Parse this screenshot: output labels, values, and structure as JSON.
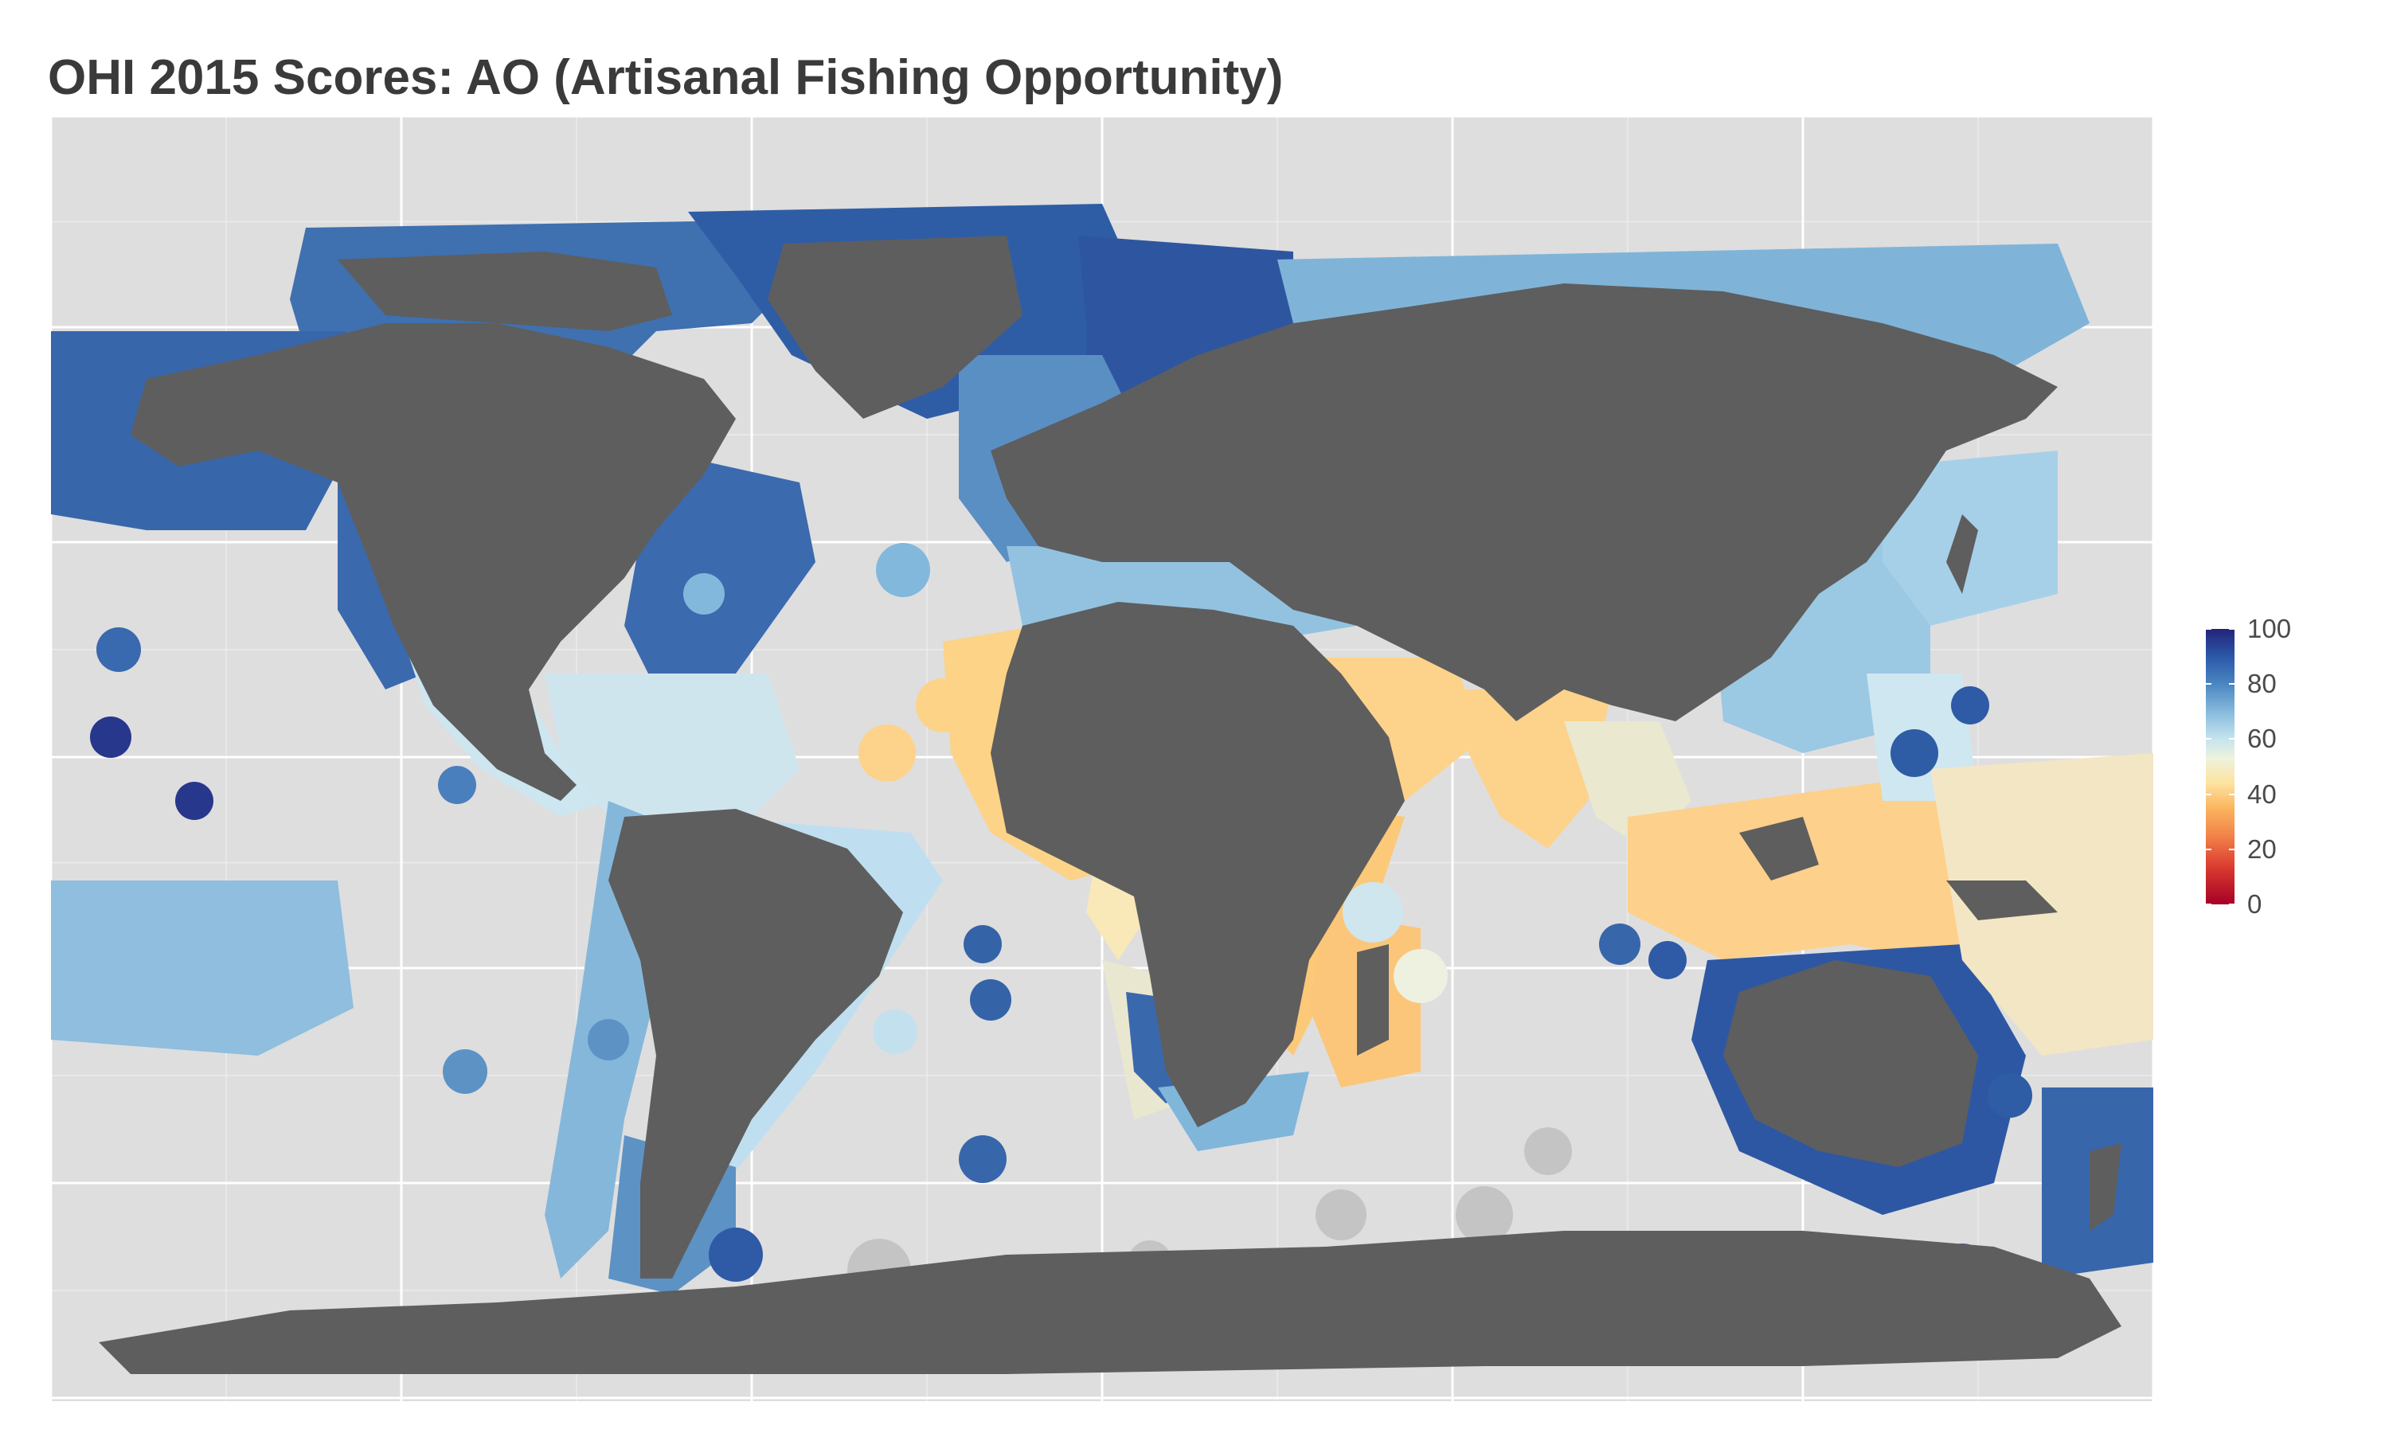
{
  "title": "OHI 2015 Scores: AO (Artisanal Fishing Opportunity)",
  "legend": {
    "ticks": [
      {
        "value": 100,
        "label": "100"
      },
      {
        "value": 80,
        "label": "80"
      },
      {
        "value": 60,
        "label": "60"
      },
      {
        "value": 40,
        "label": "40"
      },
      {
        "value": 20,
        "label": "20"
      },
      {
        "value": 0,
        "label": "0"
      }
    ],
    "range": [
      0,
      100
    ],
    "colors": [
      "#a50026",
      "#d9392e",
      "#f2834a",
      "#fbb55e",
      "#fde3a0",
      "#edf3dc",
      "#c6e4ef",
      "#86badc",
      "#4a86c2",
      "#2b58a8",
      "#23237a"
    ]
  },
  "colors": {
    "panel_background": "#dedede",
    "gridline": "#ffffff",
    "land": "#5e5e5e",
    "no_data": "#c4c4c4"
  }
}
